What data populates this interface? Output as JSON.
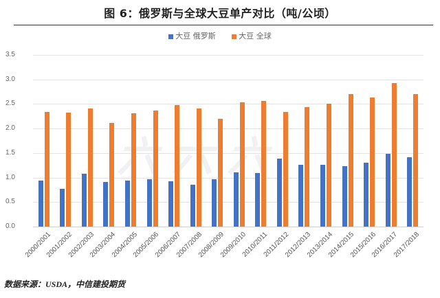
{
  "title": "图 6：俄罗斯与全球大豆单产对比（吨/公顷）",
  "source": "数据来源：USDA，中信建投期货",
  "colors": {
    "russia": "#4472C4",
    "world": "#ED7D31",
    "grid": "#e3e3e3"
  },
  "legend": [
    {
      "label": "大豆 俄罗斯",
      "color": "#4472C4"
    },
    {
      "label": "大豆 全球",
      "color": "#ED7D31"
    }
  ],
  "chart_data": {
    "type": "bar",
    "title": "图 6：俄罗斯与全球大豆单产对比（吨/公顷）",
    "xlabel": "",
    "ylabel": "吨/公顷",
    "ylim": [
      0,
      3.5
    ],
    "yticks": [
      "0.0",
      "0.5",
      "1.0",
      "1.5",
      "2.0",
      "2.5",
      "3.0",
      "3.5"
    ],
    "grid": true,
    "legend_position": "top",
    "categories": [
      "2000/2001",
      "2001/2002",
      "2002/2003",
      "2003/2004",
      "2004/2005",
      "2005/2006",
      "2006/2007",
      "2007/2008",
      "2008/2009",
      "2009/2010",
      "2010/2011",
      "2011/2012",
      "2012/2013",
      "2013/2014",
      "2014/2015",
      "2015/2016",
      "2016/2017",
      "2017/2018"
    ],
    "series": [
      {
        "name": "大豆 俄罗斯",
        "values": [
          0.94,
          0.77,
          1.08,
          0.91,
          0.94,
          0.97,
          0.92,
          0.85,
          0.97,
          1.1,
          1.09,
          1.38,
          1.26,
          1.26,
          1.23,
          1.3,
          1.48,
          1.41
        ]
      },
      {
        "name": "大豆 全球",
        "values": [
          2.34,
          2.32,
          2.41,
          2.11,
          2.31,
          2.36,
          2.48,
          2.4,
          2.19,
          2.53,
          2.56,
          2.33,
          2.44,
          2.5,
          2.7,
          2.63,
          2.92,
          2.7
        ]
      }
    ]
  }
}
